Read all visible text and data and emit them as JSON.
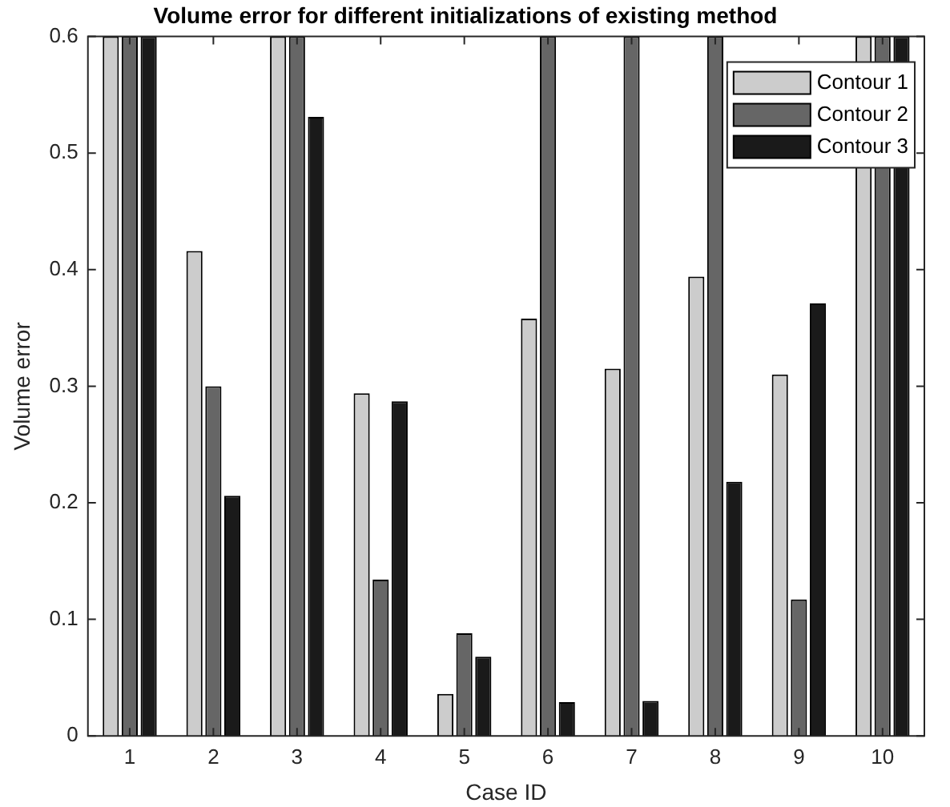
{
  "chart_data": {
    "type": "bar",
    "title": "Volume error for different initializations of existing method",
    "xlabel": "Case ID",
    "ylabel": "Volume error",
    "categories": [
      "1",
      "2",
      "3",
      "4",
      "5",
      "6",
      "7",
      "8",
      "9",
      "10"
    ],
    "series": [
      {
        "name": "Contour 1",
        "color": "#cccccc",
        "values": [
          0.6,
          0.416,
          0.6,
          0.294,
          0.036,
          0.358,
          0.315,
          0.394,
          0.31,
          0.6
        ]
      },
      {
        "name": "Contour 2",
        "color": "#666666",
        "values": [
          0.6,
          0.3,
          0.6,
          0.134,
          0.088,
          0.6,
          0.6,
          0.6,
          0.117,
          0.6
        ]
      },
      {
        "name": "Contour 3",
        "color": "#1a1a1a",
        "values": [
          0.6,
          0.206,
          0.531,
          0.287,
          0.068,
          0.029,
          0.03,
          0.218,
          0.371,
          0.6
        ]
      }
    ],
    "ylim": [
      0,
      0.6
    ],
    "yticks": [
      0,
      0.1,
      0.2,
      0.3,
      0.4,
      0.5,
      0.6
    ],
    "grid": false,
    "legend": "top right"
  }
}
